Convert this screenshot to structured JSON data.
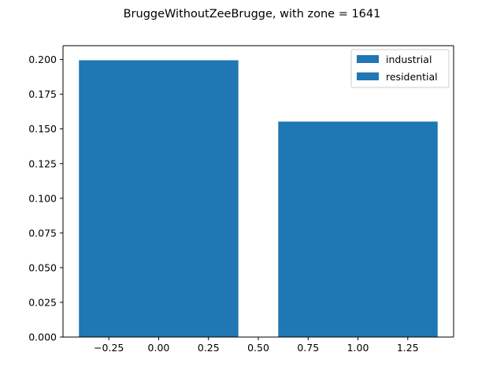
{
  "chart_data": {
    "type": "bar",
    "title": "BruggeWithoutZeeBrugge, with zone = 1641",
    "xlabel": "",
    "ylabel": "",
    "xlim": [
      -0.48,
      1.48
    ],
    "ylim": [
      0,
      0.21
    ],
    "bar_width": 0.8,
    "grid": false,
    "legend_position": "upper right",
    "xticks": [
      -0.25,
      0.0,
      0.25,
      0.5,
      0.75,
      1.0,
      1.25
    ],
    "xtick_labels": [
      "−0.25",
      "0.00",
      "0.25",
      "0.50",
      "0.75",
      "1.00",
      "1.25"
    ],
    "yticks": [
      0.0,
      0.025,
      0.05,
      0.075,
      0.1,
      0.125,
      0.15,
      0.175,
      0.2
    ],
    "ytick_labels": [
      "0.000",
      "0.025",
      "0.050",
      "0.075",
      "0.100",
      "0.125",
      "0.150",
      "0.175",
      "0.200"
    ],
    "series": [
      {
        "name": "industrial",
        "x": 0,
        "value": 0.1995,
        "color": "#1f77b4"
      },
      {
        "name": "residential",
        "x": 1,
        "value": 0.1553,
        "color": "#1f77b4"
      }
    ]
  }
}
